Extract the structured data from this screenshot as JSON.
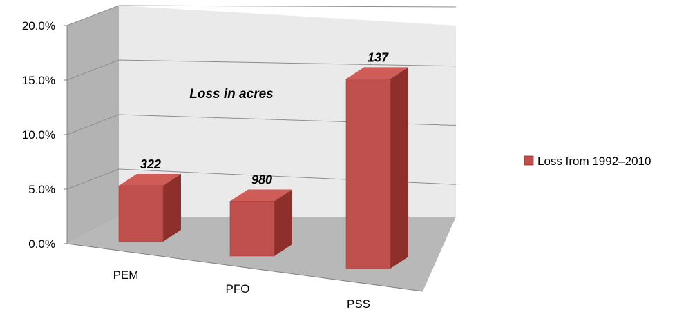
{
  "chart_data": {
    "type": "bar",
    "categories": [
      "PEM",
      "PFO",
      "PSS"
    ],
    "series": [
      {
        "name": "Loss from 1992–2010",
        "values": [
          5.4,
          5.3,
          18.3
        ],
        "color": "#c0504d"
      }
    ],
    "data_labels": [
      "322",
      "980",
      "137"
    ],
    "annotation": "Loss in acres",
    "ylim": [
      0,
      20
    ],
    "yticks": [
      "0.0%",
      "5.0%",
      "10.0%",
      "15.0%",
      "20.0%"
    ],
    "y_format": "percent",
    "grid": true,
    "three_d": true,
    "legend_position": "right"
  }
}
